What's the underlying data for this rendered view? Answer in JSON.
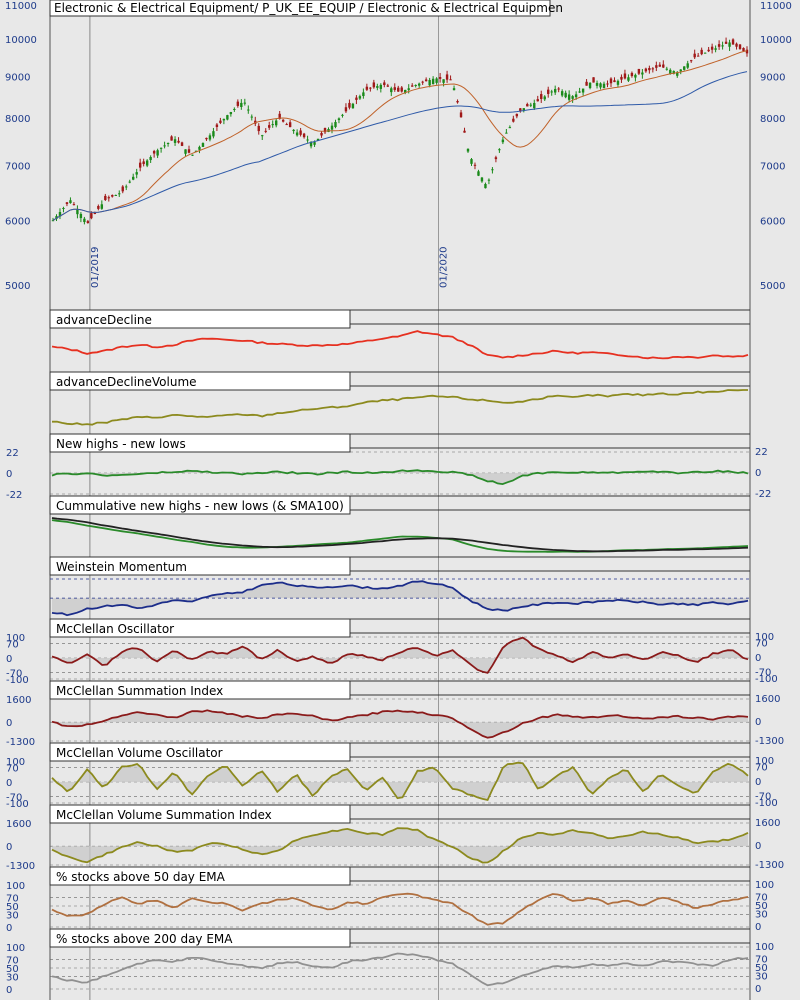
{
  "chart_data": [
    {
      "type": "candlestick",
      "title": "Electronic & Electrical Equipment/ P_UK_EE_EQUIP / Electronic & Electrical Equipmen",
      "y_ticks": [
        "11000",
        "10000",
        "9000",
        "8000",
        "7000",
        "6000",
        "5000"
      ],
      "y_tick_values": [
        11000,
        10000,
        9000,
        8000,
        7000,
        6000,
        5000
      ],
      "y_scale": "log",
      "ylim": [
        5000,
        11000
      ],
      "x_date_labels": [
        "01/2019",
        "01/2020"
      ],
      "x_range": [
        "2018-10",
        "2020-10"
      ],
      "overlays": [
        {
          "color": "#c0622a",
          "kind": "short moving average"
        },
        {
          "color": "#2f5aa8",
          "kind": "long moving average"
        }
      ],
      "colors": {
        "up": "#1a8a1a",
        "down": "#a01818"
      },
      "close_anchors": [
        6000,
        6350,
        5950,
        6350,
        6500,
        6950,
        7300,
        7550,
        7200,
        7600,
        8050,
        8400,
        7600,
        8000,
        7700,
        7450,
        7800,
        8200,
        8650,
        8800,
        8600,
        8800,
        8950,
        8900,
        7200,
        6600,
        7600,
        8200,
        8400,
        8700,
        8500,
        8850,
        8800,
        8950,
        9100,
        9250,
        9100,
        9500,
        9700,
        9900,
        9600
      ]
    },
    {
      "title": "advanceDecline",
      "type": "line",
      "color": "#e63020",
      "values": [
        0.55,
        0.5,
        0.4,
        0.45,
        0.55,
        0.6,
        0.55,
        0.6,
        0.7,
        0.75,
        0.72,
        0.7,
        0.65,
        0.62,
        0.6,
        0.58,
        0.6,
        0.62,
        0.68,
        0.75,
        0.8,
        0.92,
        0.85,
        0.78,
        0.6,
        0.35,
        0.3,
        0.35,
        0.4,
        0.45,
        0.4,
        0.42,
        0.38,
        0.35,
        0.3,
        0.28,
        0.32,
        0.3,
        0.35,
        0.32,
        0.35
      ]
    },
    {
      "title": "advanceDeclineVolume",
      "type": "line",
      "color": "#8c8a1e",
      "values": [
        0.25,
        0.2,
        0.18,
        0.22,
        0.3,
        0.35,
        0.35,
        0.4,
        0.38,
        0.35,
        0.4,
        0.42,
        0.38,
        0.45,
        0.5,
        0.55,
        0.58,
        0.62,
        0.7,
        0.75,
        0.78,
        0.82,
        0.85,
        0.83,
        0.78,
        0.75,
        0.7,
        0.72,
        0.8,
        0.85,
        0.82,
        0.88,
        0.85,
        0.9,
        0.88,
        0.92,
        0.9,
        0.95,
        0.95,
        1.0,
        1.0
      ]
    },
    {
      "title": "New highs - new lows",
      "type": "line",
      "color": "#2a8a2a",
      "y_ticks": [
        "22",
        "0",
        "-22"
      ],
      "ylim": [
        -22,
        22
      ],
      "values": [
        -2,
        -1,
        0,
        -3,
        -2,
        -1,
        0,
        1,
        2,
        1,
        0,
        -1,
        0,
        1,
        0,
        -1,
        0,
        1,
        0,
        1,
        2,
        3,
        2,
        1,
        -2,
        -8,
        -12,
        -3,
        0,
        1,
        0,
        1,
        0,
        1,
        2,
        1,
        0,
        1,
        2,
        1,
        0
      ]
    },
    {
      "title": "Cummulative new highs - new lows (& SMA100)",
      "type": "line",
      "series": [
        {
          "color": "#2a8a2a",
          "values": [
            0.85,
            0.8,
            0.72,
            0.65,
            0.58,
            0.52,
            0.45,
            0.38,
            0.32,
            0.25,
            0.2,
            0.18,
            0.18,
            0.2,
            0.22,
            0.25,
            0.28,
            0.3,
            0.35,
            0.4,
            0.45,
            0.45,
            0.42,
            0.38,
            0.25,
            0.15,
            0.1,
            0.08,
            0.08,
            0.08,
            0.08,
            0.08,
            0.1,
            0.12,
            0.12,
            0.14,
            0.15,
            0.16,
            0.18,
            0.2,
            0.22
          ]
        },
        {
          "color": "#222222",
          "values": [
            0.9,
            0.86,
            0.8,
            0.72,
            0.65,
            0.58,
            0.52,
            0.45,
            0.38,
            0.32,
            0.27,
            0.23,
            0.2,
            0.19,
            0.2,
            0.22,
            0.24,
            0.27,
            0.3,
            0.34,
            0.38,
            0.4,
            0.41,
            0.4,
            0.36,
            0.3,
            0.24,
            0.19,
            0.15,
            0.12,
            0.1,
            0.09,
            0.09,
            0.1,
            0.11,
            0.12,
            0.13,
            0.14,
            0.15,
            0.16,
            0.18
          ]
        }
      ]
    },
    {
      "title": "Weinstein Momentum",
      "type": "line",
      "color": "#1c2d8a",
      "values": [
        0.1,
        0.05,
        0.2,
        0.25,
        0.3,
        0.2,
        0.3,
        0.4,
        0.35,
        0.5,
        0.55,
        0.6,
        0.75,
        0.82,
        0.75,
        0.7,
        0.72,
        0.75,
        0.7,
        0.68,
        0.75,
        0.85,
        0.8,
        0.7,
        0.4,
        0.2,
        0.15,
        0.25,
        0.3,
        0.35,
        0.32,
        0.35,
        0.4,
        0.38,
        0.35,
        0.3,
        0.32,
        0.28,
        0.35,
        0.3,
        0.38
      ]
    },
    {
      "title": "McClellan Oscillator",
      "type": "line",
      "color": "#8a1a1a",
      "y_ticks": [
        "100",
        "70",
        "0",
        "-70",
        "-100"
      ],
      "ylim": [
        -100,
        100
      ],
      "values": [
        10,
        -30,
        20,
        -40,
        30,
        50,
        -20,
        40,
        -10,
        30,
        20,
        60,
        -10,
        40,
        -20,
        10,
        -30,
        20,
        10,
        -10,
        30,
        50,
        10,
        40,
        -30,
        -80,
        60,
        100,
        40,
        10,
        -20,
        30,
        0,
        20,
        -10,
        30,
        10,
        -20,
        20,
        40,
        -10
      ]
    },
    {
      "title": "McClellan Summation Index",
      "type": "line",
      "color": "#8a1a1a",
      "y_ticks": [
        "1600",
        "0",
        "-1300"
      ],
      "ylim": [
        -1300,
        1600
      ],
      "values": [
        0,
        -300,
        -200,
        100,
        500,
        700,
        500,
        300,
        700,
        800,
        600,
        400,
        300,
        500,
        600,
        400,
        100,
        300,
        500,
        700,
        800,
        700,
        500,
        300,
        -400,
        -1100,
        -700,
        -100,
        300,
        500,
        400,
        300,
        500,
        400,
        200,
        300,
        400,
        300,
        200,
        400,
        400
      ]
    },
    {
      "title": "McClellan Volume Oscillator",
      "type": "line",
      "color": "#8c8a1e",
      "y_ticks": [
        "100",
        "70",
        "0",
        "-70",
        "-100"
      ],
      "ylim": [
        -100,
        100
      ],
      "values": [
        20,
        -50,
        60,
        -30,
        70,
        90,
        -40,
        50,
        -60,
        30,
        80,
        -20,
        60,
        -50,
        40,
        -70,
        30,
        60,
        -40,
        20,
        -90,
        50,
        70,
        -30,
        -60,
        -90,
        80,
        100,
        -40,
        30,
        70,
        -60,
        20,
        60,
        -50,
        40,
        -20,
        -60,
        50,
        90,
        30
      ]
    },
    {
      "title": "McClellan Volume Summation Index",
      "type": "line",
      "color": "#8c8a1e",
      "y_ticks": [
        "1600",
        "0",
        "-1300"
      ],
      "ylim": [
        -1300,
        1600
      ],
      "values": [
        -200,
        -800,
        -1100,
        -600,
        -100,
        300,
        0,
        -400,
        -300,
        200,
        100,
        -200,
        -600,
        -300,
        400,
        800,
        1000,
        1200,
        900,
        800,
        1300,
        1100,
        400,
        0,
        -800,
        -1200,
        -300,
        600,
        900,
        800,
        1100,
        900,
        500,
        700,
        1000,
        800,
        600,
        200,
        300,
        500,
        900
      ]
    },
    {
      "title": "% stocks above 50 day EMA",
      "type": "line",
      "color": "#b07040",
      "y_ticks": [
        "100",
        "70",
        "50",
        "30",
        "0"
      ],
      "ylim": [
        0,
        100
      ],
      "values": [
        40,
        25,
        30,
        55,
        70,
        55,
        65,
        45,
        70,
        60,
        55,
        40,
        55,
        65,
        70,
        50,
        40,
        60,
        55,
        70,
        80,
        75,
        65,
        55,
        30,
        5,
        10,
        40,
        65,
        80,
        60,
        70,
        55,
        65,
        50,
        70,
        60,
        45,
        55,
        65,
        70
      ]
    },
    {
      "title": "% stocks above 200 day EMA",
      "type": "line",
      "color": "#909090",
      "y_ticks": [
        "100",
        "70",
        "50",
        "30",
        "0"
      ],
      "ylim": [
        0,
        100
      ],
      "values": [
        30,
        20,
        15,
        30,
        45,
        60,
        70,
        65,
        75,
        70,
        60,
        55,
        50,
        60,
        65,
        55,
        50,
        65,
        70,
        75,
        85,
        80,
        70,
        60,
        35,
        10,
        15,
        30,
        45,
        55,
        50,
        60,
        55,
        60,
        55,
        65,
        65,
        60,
        55,
        70,
        75
      ]
    }
  ]
}
